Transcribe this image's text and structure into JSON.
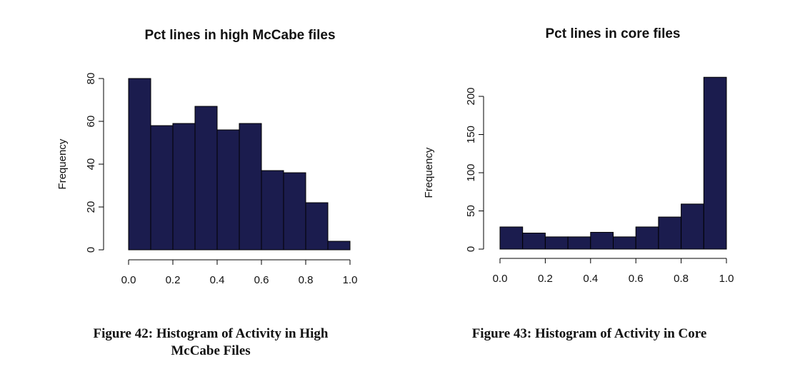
{
  "chart_data": [
    {
      "type": "bar",
      "title": "Pct lines in high McCabe files",
      "xlabel": "",
      "ylabel": "Frequency",
      "bin_edges": [
        0.0,
        0.1,
        0.2,
        0.3,
        0.4,
        0.5,
        0.6,
        0.7,
        0.8,
        0.9,
        1.0
      ],
      "values": [
        80,
        58,
        59,
        67,
        56,
        59,
        37,
        36,
        22,
        4
      ],
      "x_ticks": [
        "0.0",
        "0.2",
        "0.4",
        "0.6",
        "0.8",
        "1.0"
      ],
      "y_ticks": [
        "0",
        "20",
        "40",
        "60",
        "80"
      ],
      "xlim": [
        0,
        1
      ],
      "ylim": [
        0,
        80
      ],
      "bar_color": "#1b1c4e",
      "grid": false
    },
    {
      "type": "bar",
      "title": "Pct lines in core files",
      "xlabel": "",
      "ylabel": "Frequency",
      "bin_edges": [
        0.0,
        0.1,
        0.2,
        0.3,
        0.4,
        0.5,
        0.6,
        0.7,
        0.8,
        0.9,
        1.0
      ],
      "values": [
        29,
        21,
        16,
        16,
        22,
        16,
        29,
        42,
        59,
        225
      ],
      "x_ticks": [
        "0.0",
        "0.2",
        "0.4",
        "0.6",
        "0.8",
        "1.0"
      ],
      "y_ticks": [
        "0",
        "50",
        "100",
        "150",
        "200"
      ],
      "xlim": [
        0,
        1
      ],
      "ylim": [
        0,
        200
      ],
      "bar_color": "#1b1c4e",
      "grid": false
    }
  ],
  "captions": {
    "left_line1": "Figure 42: Histogram of Activity in High",
    "left_line2": "McCabe Files",
    "right": "Figure 43: Histogram of Activity in Core"
  }
}
